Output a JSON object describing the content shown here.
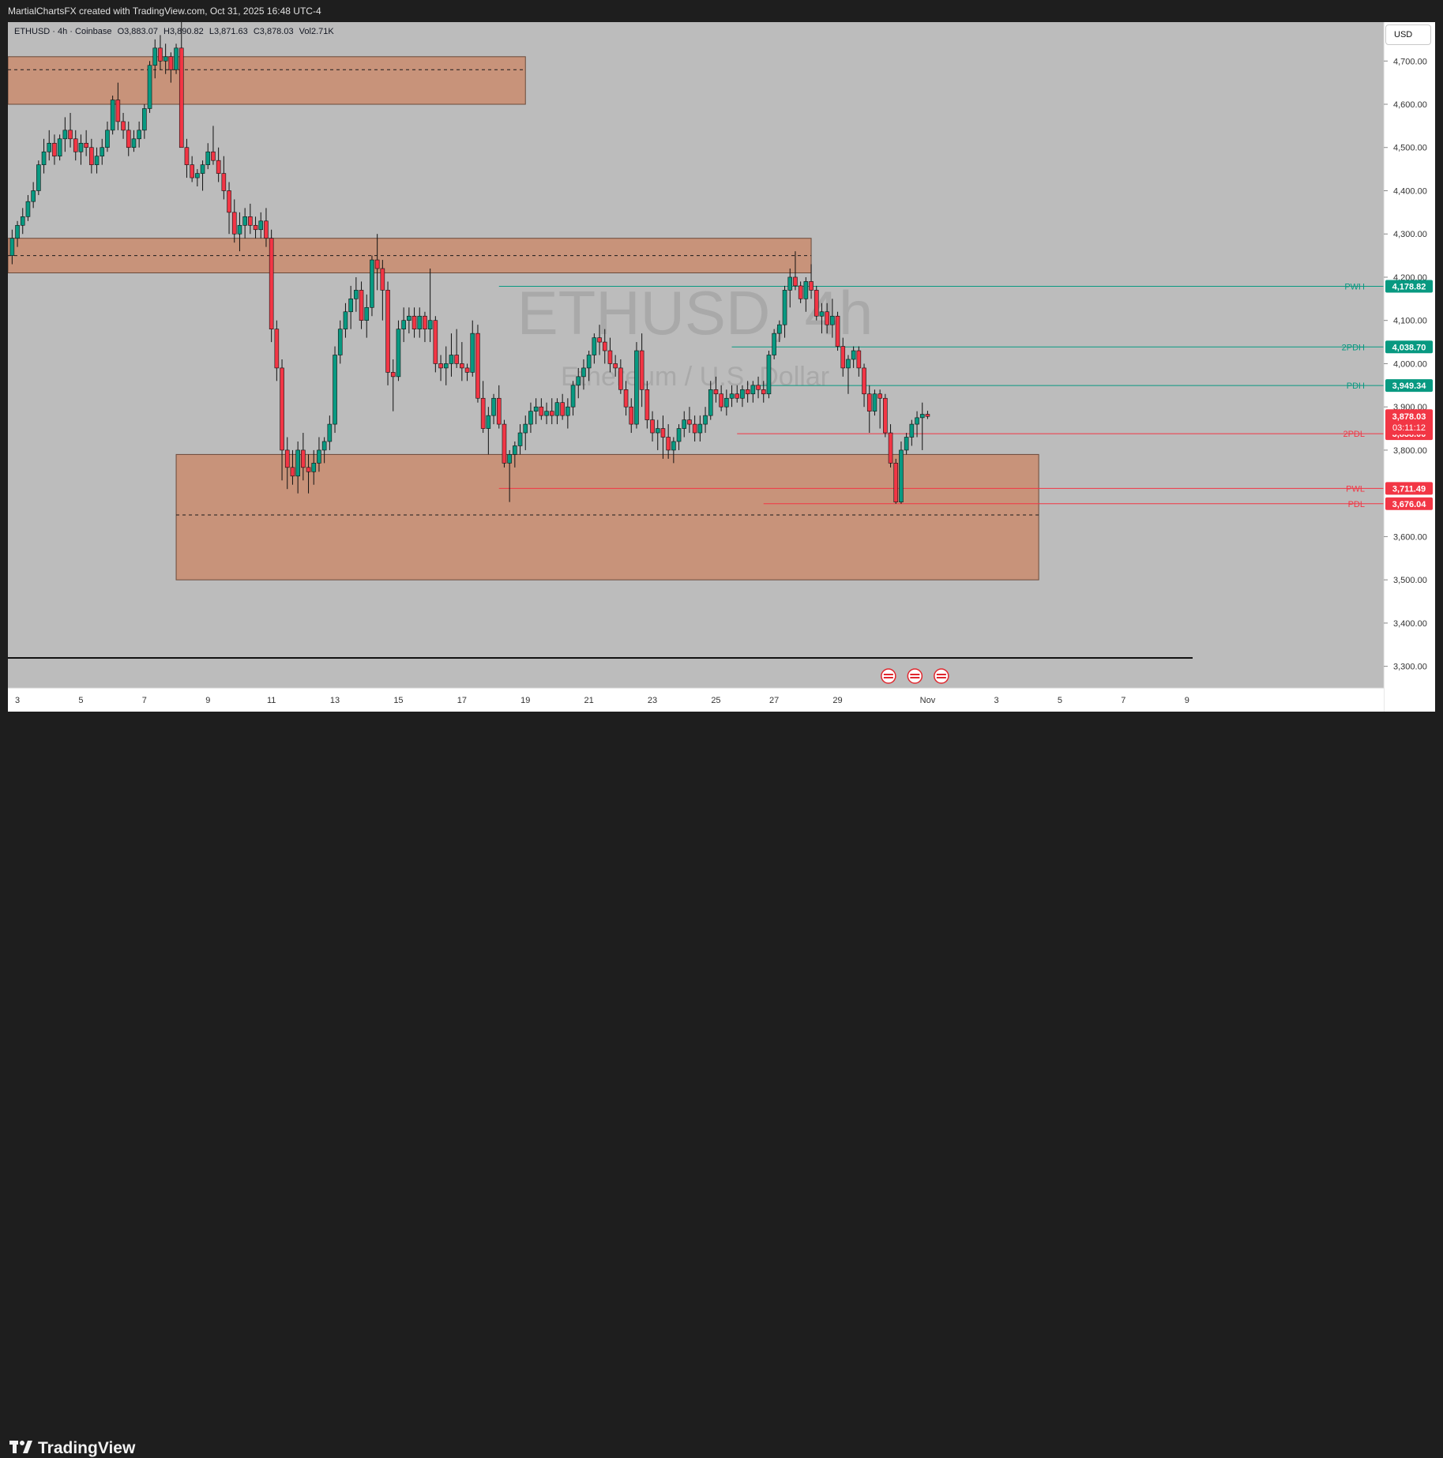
{
  "header": {
    "caption": "MartialChartsFX created with TradingView.com, Oct 31, 2025 16:48 UTC-4"
  },
  "legend": {
    "symbol": "ETHUSD · 4h · Coinbase",
    "open": "O3,883.07",
    "high": "H3,890.82",
    "low": "L3,871.63",
    "close": "C3,878.03",
    "vol": "Vol2.71K"
  },
  "currency_button": "USD",
  "watermark": {
    "symbol": "ETHUSD, 4h",
    "name": "Ethereum / U.S. Dollar"
  },
  "footer": {
    "brand": "TradingView"
  },
  "colors": {
    "up": "#089981",
    "down": "#f23645",
    "zone_fill": "#c8937a",
    "zone_border": "#6b4a3a",
    "level_green": "#089981",
    "level_red": "#f23645",
    "chart_bg": "#bcbcbc"
  },
  "chart_data": {
    "type": "candlestick",
    "ylim": [
      3250,
      4790
    ],
    "y_ticks": [
      "4,700.00",
      "4,600.00",
      "4,500.00",
      "4,400.00",
      "4,300.00",
      "4,200.00",
      "4,100.00",
      "4,000.00",
      "3,900.00",
      "3,800.00",
      "3,600.00",
      "3,500.00",
      "3,400.00",
      "3,300.00"
    ],
    "y_tick_values": [
      4700,
      4600,
      4500,
      4400,
      4300,
      4200,
      4100,
      4000,
      3900,
      3800,
      3600,
      3500,
      3400,
      3300
    ],
    "x_ticks": [
      {
        "label": "3",
        "pos": 1
      },
      {
        "label": "5",
        "pos": 13
      },
      {
        "label": "7",
        "pos": 25
      },
      {
        "label": "9",
        "pos": 37
      },
      {
        "label": "11",
        "pos": 49
      },
      {
        "label": "13",
        "pos": 61
      },
      {
        "label": "15",
        "pos": 73
      },
      {
        "label": "17",
        "pos": 85
      },
      {
        "label": "19",
        "pos": 97
      },
      {
        "label": "21",
        "pos": 109
      },
      {
        "label": "23",
        "pos": 121
      },
      {
        "label": "25",
        "pos": 133
      },
      {
        "label": "27",
        "pos": 144
      },
      {
        "label": "29",
        "pos": 156
      },
      {
        "label": "Nov",
        "pos": 173
      },
      {
        "label": "3",
        "pos": 186
      },
      {
        "label": "5",
        "pos": 198
      },
      {
        "label": "7",
        "pos": 210
      },
      {
        "label": "9",
        "pos": 222
      }
    ],
    "candles": [
      [
        4250,
        4310,
        4230,
        4290
      ],
      [
        4290,
        4330,
        4270,
        4320
      ],
      [
        4320,
        4360,
        4300,
        4340
      ],
      [
        4340,
        4390,
        4330,
        4375
      ],
      [
        4375,
        4420,
        4360,
        4400
      ],
      [
        4400,
        4470,
        4390,
        4460
      ],
      [
        4460,
        4520,
        4440,
        4490
      ],
      [
        4490,
        4540,
        4470,
        4510
      ],
      [
        4510,
        4530,
        4460,
        4480
      ],
      [
        4480,
        4530,
        4470,
        4520
      ],
      [
        4520,
        4570,
        4490,
        4540
      ],
      [
        4540,
        4580,
        4500,
        4520
      ],
      [
        4520,
        4540,
        4470,
        4490
      ],
      [
        4490,
        4530,
        4460,
        4510
      ],
      [
        4510,
        4540,
        4480,
        4500
      ],
      [
        4500,
        4520,
        4440,
        4460
      ],
      [
        4460,
        4500,
        4440,
        4480
      ],
      [
        4480,
        4520,
        4460,
        4500
      ],
      [
        4500,
        4560,
        4490,
        4540
      ],
      [
        4540,
        4620,
        4530,
        4610
      ],
      [
        4610,
        4650,
        4540,
        4560
      ],
      [
        4560,
        4580,
        4520,
        4540
      ],
      [
        4540,
        4560,
        4480,
        4500
      ],
      [
        4500,
        4540,
        4490,
        4520
      ],
      [
        4520,
        4560,
        4500,
        4540
      ],
      [
        4540,
        4600,
        4520,
        4590
      ],
      [
        4590,
        4700,
        4580,
        4690
      ],
      [
        4690,
        4750,
        4660,
        4730
      ],
      [
        4730,
        4760,
        4680,
        4700
      ],
      [
        4700,
        4740,
        4670,
        4710
      ],
      [
        4710,
        4720,
        4650,
        4680
      ],
      [
        4680,
        4740,
        4670,
        4730
      ],
      [
        4730,
        4790,
        4500,
        4500
      ],
      [
        4500,
        4520,
        4430,
        4460
      ],
      [
        4460,
        4480,
        4420,
        4430
      ],
      [
        4430,
        4450,
        4410,
        4440
      ],
      [
        4440,
        4470,
        4400,
        4460
      ],
      [
        4460,
        4510,
        4450,
        4490
      ],
      [
        4490,
        4550,
        4460,
        4470
      ],
      [
        4470,
        4500,
        4420,
        4440
      ],
      [
        4440,
        4480,
        4380,
        4400
      ],
      [
        4400,
        4420,
        4300,
        4350
      ],
      [
        4350,
        4380,
        4280,
        4300
      ],
      [
        4300,
        4350,
        4260,
        4320
      ],
      [
        4320,
        4360,
        4290,
        4340
      ],
      [
        4340,
        4370,
        4300,
        4320
      ],
      [
        4320,
        4340,
        4290,
        4310
      ],
      [
        4310,
        4350,
        4290,
        4330
      ],
      [
        4330,
        4360,
        4270,
        4290
      ],
      [
        4290,
        4310,
        4050,
        4080
      ],
      [
        4080,
        4100,
        3960,
        3990
      ],
      [
        3990,
        4010,
        3730,
        3800
      ],
      [
        3800,
        3830,
        3710,
        3760
      ],
      [
        3760,
        3800,
        3720,
        3740
      ],
      [
        3740,
        3820,
        3700,
        3800
      ],
      [
        3800,
        3840,
        3730,
        3760
      ],
      [
        3760,
        3790,
        3700,
        3750
      ],
      [
        3750,
        3800,
        3720,
        3770
      ],
      [
        3770,
        3830,
        3750,
        3800
      ],
      [
        3800,
        3830,
        3770,
        3820
      ],
      [
        3820,
        3880,
        3800,
        3860
      ],
      [
        3860,
        4040,
        3840,
        4020
      ],
      [
        4020,
        4100,
        4000,
        4080
      ],
      [
        4080,
        4140,
        4060,
        4120
      ],
      [
        4120,
        4180,
        4080,
        4150
      ],
      [
        4150,
        4200,
        4120,
        4170
      ],
      [
        4170,
        4190,
        4080,
        4100
      ],
      [
        4100,
        4160,
        4060,
        4130
      ],
      [
        4130,
        4250,
        4110,
        4240
      ],
      [
        4240,
        4300,
        4170,
        4220
      ],
      [
        4220,
        4240,
        4100,
        4170
      ],
      [
        4170,
        4190,
        3950,
        3980
      ],
      [
        3980,
        4010,
        3890,
        3970
      ],
      [
        3970,
        4100,
        3960,
        4080
      ],
      [
        4080,
        4130,
        4050,
        4100
      ],
      [
        4100,
        4130,
        4070,
        4110
      ],
      [
        4110,
        4130,
        4060,
        4080
      ],
      [
        4080,
        4130,
        4060,
        4110
      ],
      [
        4110,
        4120,
        4050,
        4080
      ],
      [
        4080,
        4220,
        4050,
        4100
      ],
      [
        4100,
        4110,
        3980,
        4000
      ],
      [
        4000,
        4020,
        3960,
        3990
      ],
      [
        3990,
        4040,
        3950,
        4000
      ],
      [
        4000,
        4070,
        3970,
        4020
      ],
      [
        4020,
        4080,
        3990,
        4000
      ],
      [
        4000,
        4050,
        3960,
        3990
      ],
      [
        3990,
        4000,
        3960,
        3980
      ],
      [
        3980,
        4100,
        3970,
        4070
      ],
      [
        4070,
        4090,
        3910,
        3920
      ],
      [
        3920,
        3960,
        3840,
        3850
      ],
      [
        3850,
        3900,
        3790,
        3880
      ],
      [
        3880,
        3930,
        3860,
        3920
      ],
      [
        3920,
        3950,
        3850,
        3860
      ],
      [
        3860,
        3870,
        3760,
        3770
      ],
      [
        3770,
        3800,
        3680,
        3790
      ],
      [
        3790,
        3820,
        3760,
        3810
      ],
      [
        3810,
        3860,
        3790,
        3840
      ],
      [
        3840,
        3880,
        3800,
        3860
      ],
      [
        3860,
        3910,
        3840,
        3890
      ],
      [
        3890,
        3920,
        3860,
        3900
      ],
      [
        3900,
        3920,
        3870,
        3880
      ],
      [
        3880,
        3910,
        3860,
        3890
      ],
      [
        3890,
        3920,
        3860,
        3880
      ],
      [
        3880,
        3920,
        3860,
        3910
      ],
      [
        3910,
        3930,
        3870,
        3880
      ],
      [
        3880,
        3920,
        3850,
        3900
      ],
      [
        3900,
        3960,
        3880,
        3950
      ],
      [
        3950,
        3990,
        3920,
        3970
      ],
      [
        3970,
        4010,
        3940,
        3990
      ],
      [
        3990,
        4030,
        3960,
        4020
      ],
      [
        4020,
        4070,
        4000,
        4060
      ],
      [
        4060,
        4090,
        4020,
        4050
      ],
      [
        4050,
        4080,
        4000,
        4030
      ],
      [
        4030,
        4060,
        3980,
        4000
      ],
      [
        4000,
        4020,
        3970,
        3990
      ],
      [
        3990,
        4010,
        3930,
        3940
      ],
      [
        3940,
        3960,
        3880,
        3900
      ],
      [
        3900,
        3920,
        3840,
        3860
      ],
      [
        3860,
        4050,
        3850,
        4030
      ],
      [
        4030,
        4070,
        3900,
        3940
      ],
      [
        3940,
        3960,
        3850,
        3870
      ],
      [
        3870,
        3890,
        3820,
        3840
      ],
      [
        3840,
        3870,
        3800,
        3850
      ],
      [
        3850,
        3880,
        3780,
        3830
      ],
      [
        3830,
        3860,
        3780,
        3800
      ],
      [
        3800,
        3830,
        3770,
        3820
      ],
      [
        3820,
        3860,
        3800,
        3850
      ],
      [
        3850,
        3890,
        3830,
        3870
      ],
      [
        3870,
        3900,
        3840,
        3860
      ],
      [
        3860,
        3880,
        3820,
        3840
      ],
      [
        3840,
        3880,
        3820,
        3860
      ],
      [
        3860,
        3900,
        3840,
        3880
      ],
      [
        3880,
        3960,
        3870,
        3940
      ],
      [
        3940,
        3970,
        3910,
        3930
      ],
      [
        3930,
        3950,
        3890,
        3900
      ],
      [
        3900,
        3940,
        3880,
        3920
      ],
      [
        3920,
        3950,
        3900,
        3930
      ],
      [
        3930,
        3950,
        3910,
        3920
      ],
      [
        3920,
        3950,
        3900,
        3940
      ],
      [
        3940,
        3960,
        3910,
        3930
      ],
      [
        3930,
        3960,
        3910,
        3950
      ],
      [
        3950,
        3970,
        3920,
        3940
      ],
      [
        3940,
        3960,
        3910,
        3930
      ],
      [
        3930,
        4030,
        3920,
        4020
      ],
      [
        4020,
        4080,
        4010,
        4070
      ],
      [
        4070,
        4100,
        4050,
        4090
      ],
      [
        4090,
        4180,
        4060,
        4170
      ],
      [
        4170,
        4220,
        4130,
        4200
      ],
      [
        4200,
        4260,
        4170,
        4180
      ],
      [
        4180,
        4190,
        4140,
        4150
      ],
      [
        4150,
        4200,
        4120,
        4190
      ],
      [
        4190,
        4230,
        4150,
        4170
      ],
      [
        4170,
        4180,
        4100,
        4110
      ],
      [
        4110,
        4140,
        4070,
        4120
      ],
      [
        4120,
        4140,
        4070,
        4090
      ],
      [
        4090,
        4150,
        4060,
        4110
      ],
      [
        4110,
        4120,
        4030,
        4040
      ],
      [
        4040,
        4060,
        3970,
        3990
      ],
      [
        3990,
        4020,
        3930,
        4010
      ],
      [
        4010,
        4040,
        3990,
        4030
      ],
      [
        4030,
        4040,
        3970,
        3990
      ],
      [
        3990,
        4000,
        3900,
        3930
      ],
      [
        3930,
        3950,
        3840,
        3890
      ],
      [
        3890,
        3940,
        3880,
        3930
      ],
      [
        3930,
        3940,
        3850,
        3920
      ],
      [
        3920,
        3930,
        3830,
        3840
      ],
      [
        3840,
        3860,
        3760,
        3770
      ],
      [
        3770,
        3780,
        3676,
        3680
      ],
      [
        3680,
        3820,
        3676,
        3800
      ],
      [
        3800,
        3840,
        3790,
        3830
      ],
      [
        3830,
        3870,
        3810,
        3860
      ],
      [
        3860,
        3890,
        3830,
        3875
      ],
      [
        3875,
        3910,
        3800,
        3883
      ],
      [
        3883,
        3891,
        3872,
        3878
      ]
    ],
    "zones": [
      {
        "from": 0,
        "to": 97,
        "top": 4710,
        "bottom": 4600,
        "mid": 4680
      },
      {
        "from": 0,
        "to": 151,
        "top": 4290,
        "bottom": 4210,
        "mid": 4250
      },
      {
        "from": 31,
        "to": 194,
        "top": 3790,
        "bottom": 3500,
        "mid": 3650
      }
    ],
    "levels": [
      {
        "name": "PWH",
        "value": 4178.82,
        "label": "4,178.82",
        "from": 92,
        "color": "green"
      },
      {
        "name": "2PDH",
        "value": 4038.7,
        "label": "4,038.70",
        "from": 136,
        "color": "green"
      },
      {
        "name": "PDH",
        "value": 3949.34,
        "label": "3,949.34",
        "from": 140,
        "color": "green"
      },
      {
        "name": "2PDL",
        "value": 3838.0,
        "label": "3,838.00",
        "from": 137,
        "color": "red"
      },
      {
        "name": "PWL",
        "value": 3711.49,
        "label": "3,711.49",
        "from": 92,
        "color": "red"
      },
      {
        "name": "PDL",
        "value": 3676.04,
        "label": "3,676.04",
        "from": 142,
        "color": "red"
      }
    ],
    "last_price": {
      "value": 3878.03,
      "label": "3,878.03",
      "countdown": "03:11:12"
    },
    "event_markers": [
      165,
      170,
      175
    ]
  }
}
